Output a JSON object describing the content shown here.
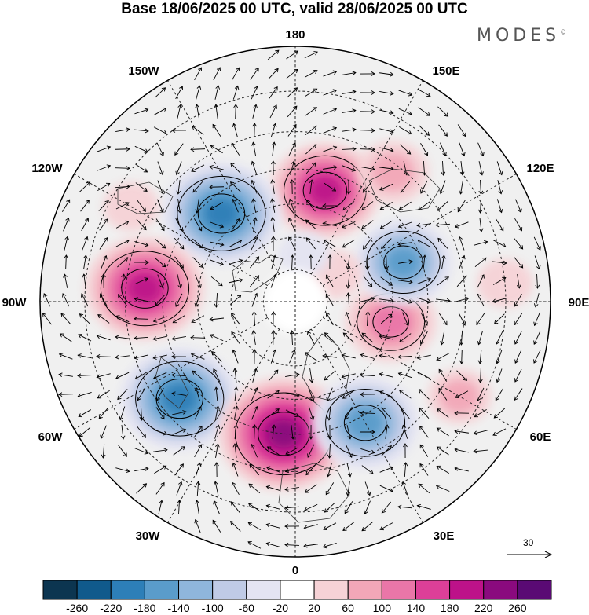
{
  "title": "Base 18/06/2025 00 UTC, valid 28/06/2025 00 UTC",
  "brand": "MODES",
  "brand_mark": "©",
  "chart_data": {
    "type": "polar-map",
    "projection": "north-polar-stereographic",
    "longitude_labels": [
      "180",
      "150E",
      "120E",
      "90E",
      "60E",
      "30E",
      "0",
      "30W",
      "60W",
      "90W",
      "120W",
      "150W"
    ],
    "vector_reference_label": "30",
    "colorbar": {
      "tick_labels": [
        "-260",
        "-220",
        "-180",
        "-140",
        "-100",
        "-60",
        "-20",
        "20",
        "60",
        "100",
        "140",
        "180",
        "220",
        "260"
      ],
      "colors": [
        "#0c3550",
        "#105a8c",
        "#2d7fb8",
        "#5a9ccb",
        "#8fb6dc",
        "#c0cbe6",
        "#e4e4f2",
        "#ffffff",
        "#f6d2d6",
        "#f2a7b8",
        "#ea76a8",
        "#dd3f98",
        "#bd1289",
        "#8a0a7e",
        "#5a0a74"
      ]
    },
    "anomalies": [
      {
        "lon": 165,
        "lat": 55,
        "value": 180,
        "label": "positive anomaly north Pacific"
      },
      {
        "lon": 143,
        "lat": 42,
        "value": 80
      },
      {
        "lon": -140,
        "lat": 55,
        "value": -200,
        "label": "negative anomaly Alaska/Gulf"
      },
      {
        "lon": -95,
        "lat": 45,
        "value": 200,
        "label": "positive anomaly Canada/US"
      },
      {
        "lon": -50,
        "lat": 45,
        "value": -200,
        "label": "negative anomaly NW Atlantic"
      },
      {
        "lon": -5,
        "lat": 50,
        "value": 230,
        "label": "positive anomaly western Europe"
      },
      {
        "lon": 30,
        "lat": 48,
        "value": -170,
        "label": "negative anomaly eastern Europe"
      },
      {
        "lon": 78,
        "lat": 60,
        "value": 130,
        "label": "positive anomaly western Siberia"
      },
      {
        "lon": 110,
        "lat": 55,
        "value": -150,
        "label": "negative anomaly eastern Siberia"
      },
      {
        "lon": 125,
        "lat": 75,
        "value": 40
      },
      {
        "lon": 170,
        "lat": 75,
        "value": -30
      },
      {
        "lon": -120,
        "lat": 35,
        "value": 40
      },
      {
        "lon": 60,
        "lat": 35,
        "value": 60
      },
      {
        "lon": 95,
        "lat": 30,
        "value": 40
      }
    ]
  }
}
